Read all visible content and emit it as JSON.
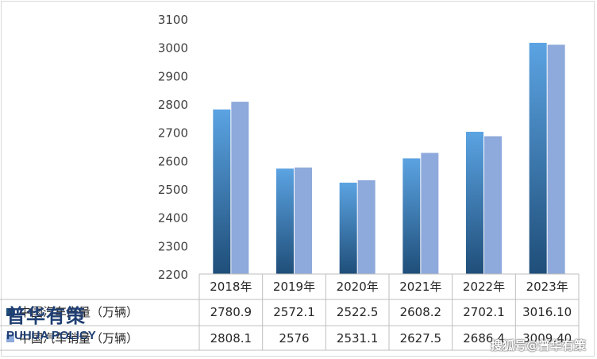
{
  "chart_data": {
    "type": "bar",
    "categories": [
      "2018年",
      "2019年",
      "2020年",
      "2021年",
      "2022年",
      "2023年"
    ],
    "series": [
      {
        "name": "中国汽车产量（万辆）",
        "values": [
          2780.9,
          2572.1,
          2522.5,
          2608.2,
          2702.1,
          3016.1
        ],
        "labels": [
          "2780.9",
          "2572.1",
          "2522.5",
          "2608.2",
          "2702.1",
          "3016.10"
        ],
        "color_top": "#5ba3e2",
        "color_bottom": "#1f4e79"
      },
      {
        "name": "中国汽车销量（万辆）",
        "values": [
          2808.1,
          2576,
          2531.1,
          2627.5,
          2686.4,
          3009.4
        ],
        "labels": [
          "2808.1",
          "2576",
          "2531.1",
          "2627.5",
          "2686.4",
          "3009.40"
        ],
        "color_top": "#8ea9db",
        "color_bottom": "#8ea9db"
      }
    ],
    "yticks": [
      2200,
      2300,
      2400,
      2500,
      2600,
      2700,
      2800,
      2900,
      3000,
      3100
    ],
    "ylim": [
      2200,
      3100
    ],
    "grid": false,
    "legend": "data-table"
  },
  "branding": {
    "logo_cn": "普华有策",
    "logo_en": "PUHUA POLICY",
    "watermark": "搜狐号@普华有策"
  }
}
